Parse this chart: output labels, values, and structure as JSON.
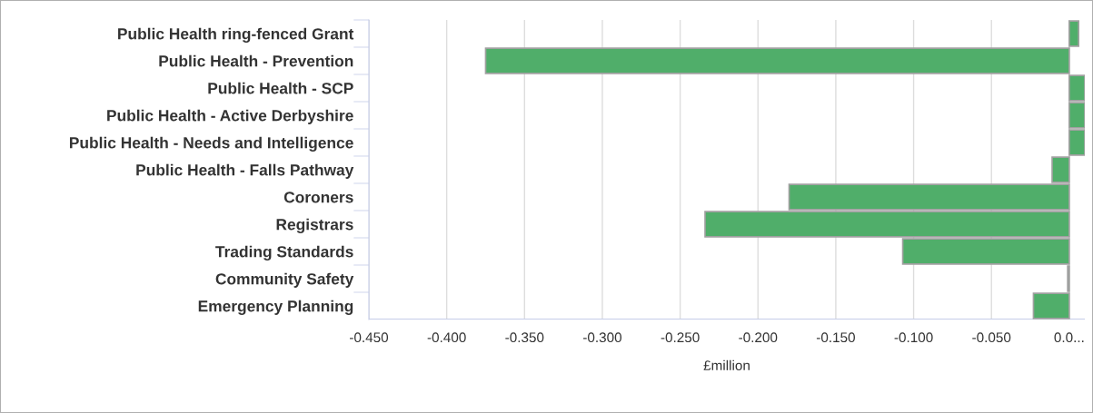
{
  "chart_data": {
    "type": "bar",
    "orientation": "horizontal",
    "xlabel": "£million",
    "categories": [
      "Public Health ring-fenced Grant",
      "Public Health - Prevention",
      "Public Health - SCP",
      "Public Health - Active Derbyshire",
      "Public Health - Needs and Intelligence",
      "Public Health - Falls Pathway",
      "Coroners",
      "Registrars",
      "Trading Standards",
      "Community Safety",
      "Emergency Planning"
    ],
    "values": [
      0.006,
      -0.375,
      0.01,
      0.01,
      0.01,
      -0.011,
      -0.18,
      -0.234,
      -0.107,
      -0.001,
      -0.023
    ],
    "color": "#50ae6a",
    "xlim": [
      -0.45,
      0.01
    ],
    "xticks": [
      {
        "value": -0.45,
        "label": "-0.450"
      },
      {
        "value": -0.4,
        "label": "-0.400"
      },
      {
        "value": -0.35,
        "label": "-0.350"
      },
      {
        "value": -0.3,
        "label": "-0.300"
      },
      {
        "value": -0.25,
        "label": "-0.250"
      },
      {
        "value": -0.2,
        "label": "-0.200"
      },
      {
        "value": -0.15,
        "label": "-0.150"
      },
      {
        "value": -0.1,
        "label": "-0.100"
      },
      {
        "value": -0.05,
        "label": "-0.050"
      },
      {
        "value": 0,
        "label": "0.0..."
      }
    ],
    "grid": "x",
    "legend": false
  }
}
